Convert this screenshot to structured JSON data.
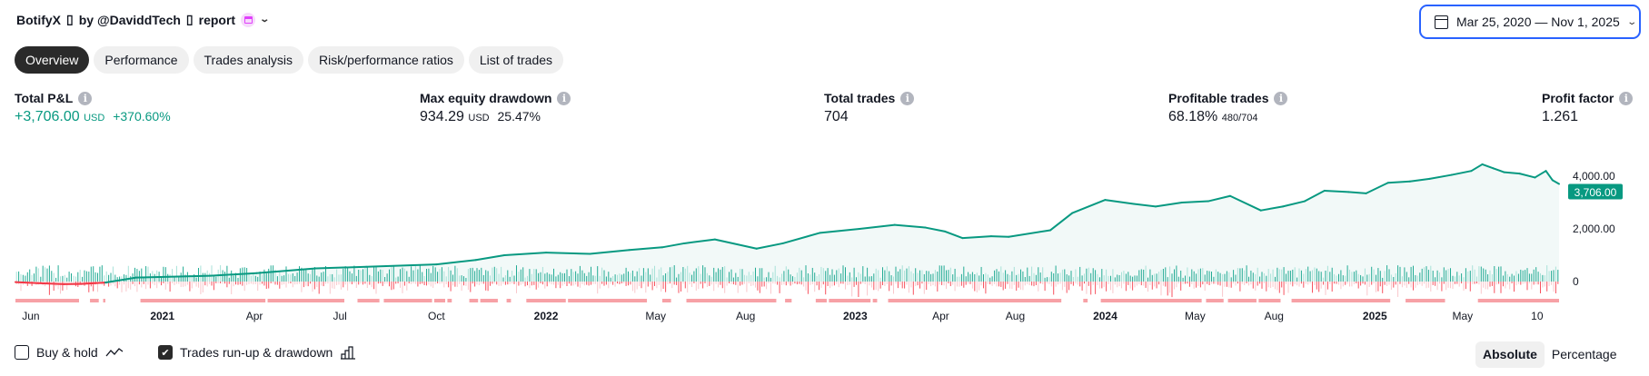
{
  "header": {
    "strategy": "BotifyX",
    "glyph": "▯",
    "by": "by @DaviddTech",
    "report": "report",
    "date_range": "Mar 25, 2020 — Nov 1, 2025"
  },
  "tabs": [
    {
      "label": "Overview",
      "active": true
    },
    {
      "label": "Performance"
    },
    {
      "label": "Trades analysis"
    },
    {
      "label": "Risk/performance ratios"
    },
    {
      "label": "List of trades"
    }
  ],
  "metrics": {
    "total_pnl": {
      "label": "Total P&L",
      "value": "+3,706.00",
      "unit": "USD",
      "pct": "+370.60%"
    },
    "max_dd": {
      "label": "Max equity drawdown",
      "value": "934.29",
      "unit": "USD",
      "pct": "25.47%"
    },
    "total_trades": {
      "label": "Total trades",
      "value": "704"
    },
    "profitable": {
      "label": "Profitable trades",
      "value": "68.18%",
      "ratio": "480/704"
    },
    "profit_factor": {
      "label": "Profit factor",
      "value": "1.261"
    }
  },
  "chart_data": {
    "type": "line",
    "x_unit": "trade number",
    "xlim": [
      0,
      704
    ],
    "ylim": [
      -600,
      4600
    ],
    "current_value_label": "3,706.00",
    "y_ticks": [
      {
        "value": 4000,
        "label": "4,000.00"
      },
      {
        "value": 2000,
        "label": "2,000.00"
      },
      {
        "value": 0,
        "label": "0"
      }
    ],
    "x_ticks": [
      {
        "t": 7,
        "label": "Jun"
      },
      {
        "t": 67,
        "label": "2021",
        "bold": true
      },
      {
        "t": 109,
        "label": "Apr"
      },
      {
        "t": 148,
        "label": "Jul"
      },
      {
        "t": 192,
        "label": "Oct"
      },
      {
        "t": 242,
        "label": "2022",
        "bold": true
      },
      {
        "t": 292,
        "label": "May"
      },
      {
        "t": 333,
        "label": "Aug"
      },
      {
        "t": 383,
        "label": "2023",
        "bold": true
      },
      {
        "t": 422,
        "label": "Apr"
      },
      {
        "t": 456,
        "label": "Aug"
      },
      {
        "t": 497,
        "label": "2024",
        "bold": true
      },
      {
        "t": 538,
        "label": "May"
      },
      {
        "t": 574,
        "label": "Aug"
      },
      {
        "t": 620,
        "label": "2025",
        "bold": true
      },
      {
        "t": 660,
        "label": "May"
      },
      {
        "t": 694,
        "label": "10"
      }
    ],
    "equity": [
      [
        0,
        -20
      ],
      [
        10,
        -60
      ],
      [
        22,
        -100
      ],
      [
        30,
        -90
      ],
      [
        41,
        -40
      ],
      [
        55,
        150
      ],
      [
        70,
        180
      ],
      [
        89,
        220
      ],
      [
        110,
        320
      ],
      [
        137,
        500
      ],
      [
        160,
        560
      ],
      [
        192,
        650
      ],
      [
        210,
        820
      ],
      [
        223,
        1000
      ],
      [
        242,
        1100
      ],
      [
        262,
        1050
      ],
      [
        280,
        1200
      ],
      [
        295,
        1300
      ],
      [
        305,
        1450
      ],
      [
        319,
        1600
      ],
      [
        338,
        1250
      ],
      [
        350,
        1450
      ],
      [
        367,
        1850
      ],
      [
        385,
        2000
      ],
      [
        401,
        2150
      ],
      [
        415,
        2050
      ],
      [
        424,
        1900
      ],
      [
        432,
        1650
      ],
      [
        445,
        1720
      ],
      [
        453,
        1700
      ],
      [
        472,
        1950
      ],
      [
        482,
        2600
      ],
      [
        497,
        3100
      ],
      [
        510,
        2950
      ],
      [
        520,
        2850
      ],
      [
        532,
        3000
      ],
      [
        544,
        3050
      ],
      [
        554,
        3250
      ],
      [
        568,
        2700
      ],
      [
        578,
        2850
      ],
      [
        588,
        3050
      ],
      [
        597,
        3450
      ],
      [
        608,
        3400
      ],
      [
        616,
        3350
      ],
      [
        626,
        3750
      ],
      [
        636,
        3800
      ],
      [
        645,
        3900
      ],
      [
        655,
        4050
      ],
      [
        664,
        4200
      ],
      [
        669,
        4450
      ],
      [
        674,
        4300
      ],
      [
        679,
        4150
      ],
      [
        686,
        4100
      ],
      [
        693,
        3950
      ],
      [
        698,
        4200
      ],
      [
        701,
        3850
      ],
      [
        704,
        3706
      ]
    ],
    "drawdown_periods": [
      [
        0,
        29
      ],
      [
        34,
        38
      ],
      [
        40,
        41
      ],
      [
        57,
        114
      ],
      [
        115,
        150
      ],
      [
        156,
        166
      ],
      [
        168,
        190
      ],
      [
        191,
        196
      ],
      [
        197,
        199
      ],
      [
        207,
        211
      ],
      [
        212,
        220
      ],
      [
        224,
        226
      ],
      [
        233,
        251
      ],
      [
        252,
        288
      ],
      [
        295,
        299
      ],
      [
        306,
        347
      ],
      [
        351,
        354
      ],
      [
        365,
        370
      ],
      [
        371,
        390
      ],
      [
        391,
        393
      ],
      [
        398,
        477
      ],
      [
        487,
        489
      ],
      [
        495,
        541
      ],
      [
        543,
        551
      ],
      [
        553,
        566
      ],
      [
        567,
        577
      ],
      [
        582,
        627
      ],
      [
        634,
        652
      ],
      [
        667,
        704
      ]
    ],
    "colors": {
      "equity": "#089981",
      "negative": "#f23645",
      "fill": "#f2f9f8",
      "runup": "#22ab94",
      "drawdown": "#f7525f",
      "dd_strip": "#f7a1a6"
    }
  },
  "options": {
    "buy_hold": {
      "label": "Buy & hold",
      "checked": false
    },
    "runup": {
      "label": "Trades run-up & drawdown",
      "checked": true
    },
    "absolute": "Absolute",
    "percentage": "Percentage"
  }
}
